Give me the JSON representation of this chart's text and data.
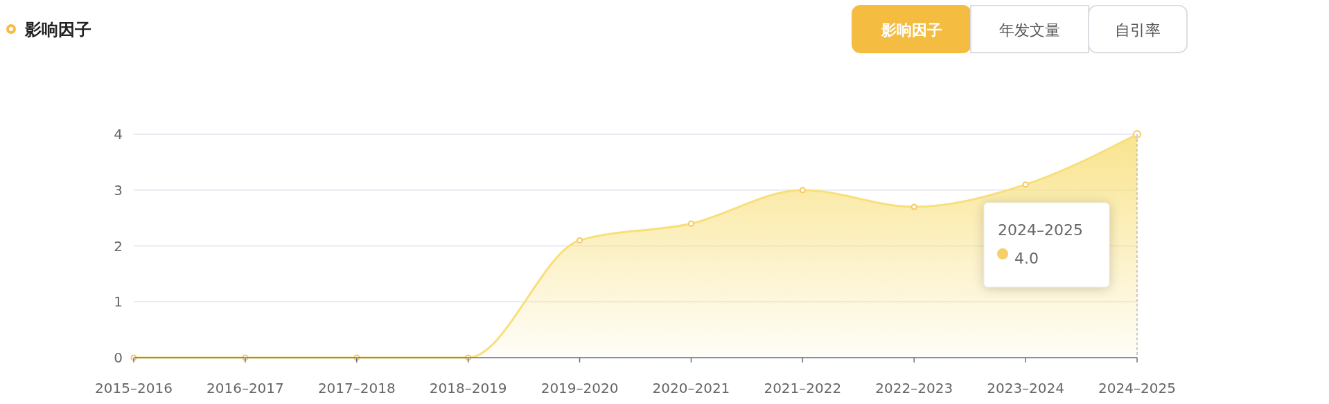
{
  "chart_data": {
    "type": "area",
    "title": "影响因子",
    "categories": [
      "2015–2016",
      "2016–2017",
      "2017–2018",
      "2018–2019",
      "2019–2020",
      "2020–2021",
      "2021–2022",
      "2022–2023",
      "2023–2024",
      "2024–2025"
    ],
    "series": [
      {
        "color": "#f8df7a",
        "values": [
          0,
          0,
          0,
          0,
          2.1,
          2.4,
          3.0,
          2.7,
          3.1,
          4.0
        ]
      }
    ],
    "ylim": [
      0,
      4
    ],
    "yticks": [
      0,
      1,
      2,
      3,
      4
    ],
    "grid": "y",
    "marker": "circle",
    "ref_lines": [
      {
        "axis": "x",
        "value": "2024–2025",
        "color": "#bbbbbb",
        "line_style": "dashed"
      }
    ],
    "annotations": [
      "影响因子",
      "年发文量",
      "自引率",
      "2024–2025",
      "4.0"
    ]
  }
}
